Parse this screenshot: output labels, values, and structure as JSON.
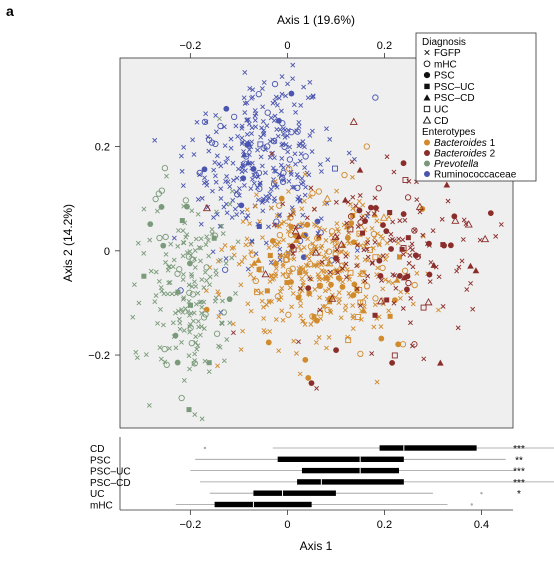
{
  "panel_label": "a",
  "chart_data": [
    {
      "type": "scatter",
      "title": "",
      "xlabel": "Axis 1 (19.6%)",
      "ylabel": "Axis 2 (14.2%)",
      "xlim": [
        -0.345,
        0.465
      ],
      "ylim": [
        -0.34,
        0.37
      ],
      "x_ticks": [
        -0.2,
        0,
        0.2,
        0.4
      ],
      "x_tick_labels": [
        "−0.2",
        "0",
        "0.2",
        "0.4"
      ],
      "y_ticks": [
        -0.2,
        0,
        0.2
      ],
      "y_tick_labels": [
        "−0.2",
        "0",
        "0.2"
      ],
      "x_axis_position": "top",
      "grid": false,
      "legend_position": "top-right",
      "legend": {
        "diagnosis_title": "Diagnosis",
        "diagnosis": [
          {
            "label": "FGFP",
            "marker": "x"
          },
          {
            "label": "mHC",
            "marker": "open-circle"
          },
          {
            "label": "PSC",
            "marker": "filled-circle"
          },
          {
            "label": "PSC–UC",
            "marker": "filled-square"
          },
          {
            "label": "PSC–CD",
            "marker": "filled-triangle"
          },
          {
            "label": "UC",
            "marker": "open-square"
          },
          {
            "label": "CD",
            "marker": "open-triangle"
          }
        ],
        "enterotype_title": "Enterotypes",
        "enterotypes": [
          {
            "label": "Bacteroides",
            "suffix": " 1",
            "italic": true,
            "color": "#d18a2c"
          },
          {
            "label": "Bacteroides",
            "suffix": " 2",
            "italic": true,
            "color": "#8b2d2a"
          },
          {
            "label": "Prevotella",
            "suffix": "",
            "italic": true,
            "color": "#7a9a7a"
          },
          {
            "label": "Ruminococcaceae",
            "suffix": "",
            "italic": false,
            "color": "#4a55b0"
          }
        ]
      },
      "clusters": [
        {
          "enterotype": "Ruminococcaceae",
          "color": "#4a55b0",
          "center": [
            -0.06,
            0.17
          ],
          "spread": [
            0.075,
            0.085
          ],
          "n": 330,
          "markers": {
            "x": 0.83,
            "open-circle": 0.11,
            "filled-circle": 0.03,
            "filled-square": 0.01,
            "open-square": 0.01,
            "filled-triangle": 0.01
          }
        },
        {
          "enterotype": "Bacteroides 1",
          "color": "#d18a2c",
          "center": [
            0.06,
            -0.03
          ],
          "spread": [
            0.09,
            0.075
          ],
          "n": 430,
          "markers": {
            "x": 0.8,
            "open-circle": 0.08,
            "filled-circle": 0.05,
            "filled-square": 0.025,
            "open-square": 0.02,
            "filled-triangle": 0.015,
            "open-triangle": 0.01
          }
        },
        {
          "enterotype": "Bacteroides 2",
          "color": "#8b2d2a",
          "center": [
            0.2,
            0.0
          ],
          "spread": [
            0.11,
            0.09
          ],
          "n": 190,
          "markers": {
            "x": 0.55,
            "filled-circle": 0.16,
            "open-circle": 0.06,
            "filled-square": 0.05,
            "filled-triangle": 0.07,
            "open-triangle": 0.07,
            "open-square": 0.04
          }
        },
        {
          "enterotype": "Prevotella",
          "color": "#7a9a7a",
          "center": [
            -0.2,
            -0.07
          ],
          "spread": [
            0.045,
            0.095
          ],
          "n": 200,
          "markers": {
            "x": 0.8,
            "open-circle": 0.12,
            "filled-circle": 0.05,
            "filled-square": 0.03
          }
        }
      ]
    },
    {
      "type": "boxplot",
      "title": "",
      "xlabel": "Axis 1",
      "xlim": [
        -0.345,
        0.465
      ],
      "x_ticks": [
        -0.2,
        0,
        0.2,
        0.4
      ],
      "x_tick_labels": [
        "−0.2",
        "0",
        "0.2",
        "0.4"
      ],
      "groups": [
        {
          "label": "CD",
          "whisker_low": -0.03,
          "q1": 0.19,
          "median": 0.24,
          "q3": 0.39,
          "whisker_high": 0.56,
          "outliers": [
            -0.17
          ],
          "significance": "***"
        },
        {
          "label": "PSC",
          "whisker_low": -0.19,
          "q1": -0.02,
          "median": 0.15,
          "q3": 0.24,
          "whisker_high": 0.45,
          "outliers": [],
          "significance": "**"
        },
        {
          "label": "PSC–UC",
          "whisker_low": -0.2,
          "q1": 0.03,
          "median": 0.15,
          "q3": 0.23,
          "whisker_high": 0.47,
          "outliers": [],
          "significance": "***"
        },
        {
          "label": "PSC–CD",
          "whisker_low": -0.18,
          "q1": 0.02,
          "median": 0.07,
          "q3": 0.24,
          "whisker_high": 0.55,
          "outliers": [],
          "significance": "***"
        },
        {
          "label": "UC",
          "whisker_low": -0.16,
          "q1": -0.07,
          "median": -0.01,
          "q3": 0.1,
          "whisker_high": 0.3,
          "outliers": [
            0.4
          ],
          "significance": "*"
        },
        {
          "label": "mHC",
          "whisker_low": -0.23,
          "q1": -0.15,
          "median": -0.07,
          "q3": 0.05,
          "whisker_high": 0.33,
          "outliers": [
            0.38
          ],
          "significance": ""
        }
      ]
    }
  ]
}
